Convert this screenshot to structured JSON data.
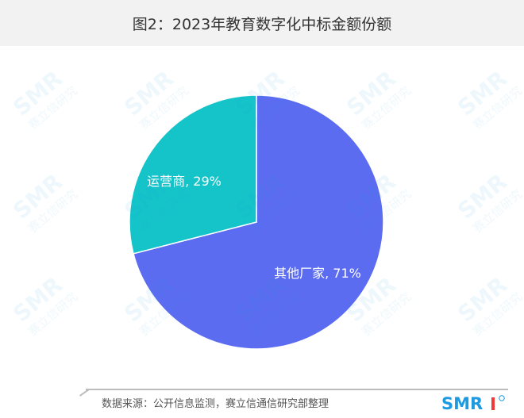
{
  "title": "图2：2023年教育数字化中标金额份额",
  "chart_data": {
    "type": "pie",
    "slices": [
      {
        "name": "其他厂家",
        "value": 71,
        "label": "其他厂家, 71%",
        "color": "#5b6cf0"
      },
      {
        "name": "运营商",
        "value": 29,
        "label": "运营商, 29%",
        "color": "#14c4c8"
      }
    ],
    "legend": "none"
  },
  "footer": {
    "source": "数据来源：公开信息监测，赛立信通信研究部整理",
    "logo_text": "SMR"
  },
  "watermark": {
    "brand": "SMR",
    "text": "赛立信研究"
  }
}
